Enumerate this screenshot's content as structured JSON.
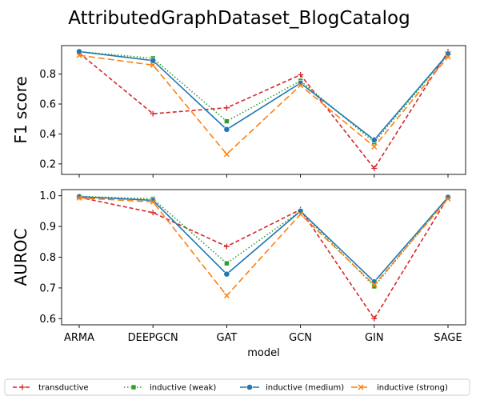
{
  "chart_data": {
    "type": "line",
    "title": "AttributedGraphDataset_BlogCatalog",
    "xlabel": "model",
    "categories": [
      "ARMA",
      "DEEPGCN",
      "GAT",
      "GCN",
      "GIN",
      "SAGE"
    ],
    "legend_placement": "bottom",
    "series_styles": [
      {
        "name": "transductive",
        "color": "#d62728",
        "dash": "5,3",
        "marker": "plus"
      },
      {
        "name": "inductive (weak)",
        "color": "#2ca02c",
        "dash": "1.5,2.5",
        "marker": "square"
      },
      {
        "name": "inductive (medium)",
        "color": "#1f77b4",
        "dash": "",
        "marker": "circle"
      },
      {
        "name": "inductive (strong)",
        "color": "#ff7f0e",
        "dash": "8,4",
        "marker": "x"
      }
    ],
    "panels": [
      {
        "ylabel": "F1 score",
        "ylim": [
          0.13,
          0.99
        ],
        "yticks": [
          0.2,
          0.4,
          0.6,
          0.8
        ],
        "series": [
          {
            "name": "transductive",
            "values": [
              0.94,
              0.535,
              0.575,
              0.795,
              0.17,
              0.95
            ]
          },
          {
            "name": "inductive (weak)",
            "values": [
              0.95,
              0.905,
              0.485,
              0.755,
              0.345,
              0.93
            ]
          },
          {
            "name": "inductive (medium)",
            "values": [
              0.95,
              0.89,
              0.43,
              0.74,
              0.36,
              0.935
            ]
          },
          {
            "name": "inductive (strong)",
            "values": [
              0.925,
              0.86,
              0.265,
              0.725,
              0.315,
              0.915
            ]
          }
        ]
      },
      {
        "ylabel": "AUROC",
        "ylim": [
          0.58,
          1.02
        ],
        "yticks": [
          0.6,
          0.7,
          0.8,
          0.9,
          1.0
        ],
        "series": [
          {
            "name": "transductive",
            "values": [
              0.995,
              0.945,
              0.835,
              0.955,
              0.6,
              0.995
            ]
          },
          {
            "name": "inductive (weak)",
            "values": [
              0.998,
              0.99,
              0.78,
              0.95,
              0.705,
              0.995
            ]
          },
          {
            "name": "inductive (medium)",
            "values": [
              0.997,
              0.985,
              0.745,
              0.95,
              0.72,
              0.995
            ]
          },
          {
            "name": "inductive (strong)",
            "values": [
              0.993,
              0.98,
              0.675,
              0.94,
              0.71,
              0.99
            ]
          }
        ]
      }
    ]
  }
}
